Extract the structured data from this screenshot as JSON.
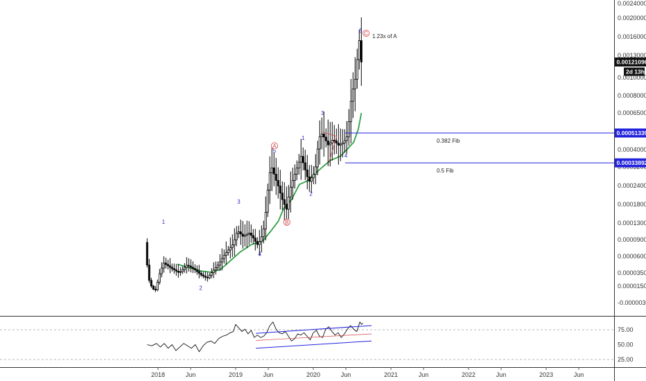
{
  "chart_data": [
    {
      "type": "candlestick",
      "ylim": [
        -3.5e-06,
        0.00024
      ],
      "y_scale": "log",
      "y_ticks": [
        "0.00240000",
        "0.00200000",
        "0.00160000",
        "0.00130000",
        "0.00100000",
        "0.00080000",
        "0.00065000",
        "0.00040000",
        "0.00032000",
        "0.00024000",
        "0.00018000",
        "0.00013000",
        "0.00009000",
        "0.00006000",
        "0.00003500",
        "0.00001500",
        "-0.00000300"
      ],
      "x_ticks": [
        "2018",
        "Jun",
        "2019",
        "Jun",
        "2020",
        "Jun",
        "2021",
        "Jun",
        "2022",
        "Jun",
        "2023",
        "Jun"
      ],
      "price_tags": [
        {
          "label": "0.00121096",
          "sub": "2d 13h",
          "style": "dark"
        },
        {
          "label": "0.00051339",
          "style": "blue"
        },
        {
          "label": "0.00033892",
          "style": "blue"
        }
      ],
      "levels": [
        {
          "label": "0.382 Fib",
          "value": 0.00051339
        },
        {
          "label": "0.5 Fib",
          "value": 0.00033892
        }
      ],
      "annotations": {
        "waves": [
          "1",
          "2",
          "3",
          "4",
          "5",
          "A",
          "B",
          "1",
          "2",
          "3",
          "4",
          "5",
          "C"
        ],
        "note": "1.23x of A"
      },
      "colors": {
        "candle": "#000000",
        "ma": "#2ea043",
        "fib": "#2222dd",
        "abc": "#d04040",
        "wave": "#2828c8"
      },
      "price_path": [
        [
          2017.86,
          8.5e-05
        ],
        [
          2017.9,
          2.8e-05
        ],
        [
          2017.95,
          1.2e-05
        ],
        [
          2018.0,
          1.1e-05
        ],
        [
          2018.05,
          3.5e-05
        ],
        [
          2018.1,
          5e-05
        ],
        [
          2018.2,
          4.2e-05
        ],
        [
          2018.3,
          3.5e-05
        ],
        [
          2018.4,
          4.7e-05
        ],
        [
          2018.5,
          4e-05
        ],
        [
          2018.58,
          3.2e-05
        ],
        [
          2018.66,
          2.7e-05
        ],
        [
          2018.72,
          3.6e-05
        ],
        [
          2018.8,
          4.7e-05
        ],
        [
          2018.9,
          6.6e-05
        ],
        [
          2019.0,
          8.3e-05
        ],
        [
          2019.05,
          0.000112
        ],
        [
          2019.12,
          9.8e-05
        ],
        [
          2019.2,
          0.000106
        ],
        [
          2019.27,
          9e-05
        ],
        [
          2019.3,
          8e-05
        ],
        [
          2019.35,
          9e-05
        ],
        [
          2019.4,
          0.000125
        ],
        [
          2019.45,
          0.00025
        ],
        [
          2019.48,
          0.00033
        ],
        [
          2019.55,
          0.00026
        ],
        [
          2019.62,
          0.0002
        ],
        [
          2019.68,
          0.000165
        ],
        [
          2019.72,
          0.00022
        ],
        [
          2019.8,
          0.0003
        ],
        [
          2019.87,
          0.00037
        ],
        [
          2019.92,
          0.00031
        ],
        [
          2019.97,
          0.000255
        ],
        [
          2020.05,
          0.0003
        ],
        [
          2020.12,
          0.00052
        ],
        [
          2020.17,
          0.00048
        ],
        [
          2020.22,
          0.00043
        ],
        [
          2020.28,
          0.00047
        ],
        [
          2020.35,
          0.00043
        ],
        [
          2020.42,
          0.00045
        ],
        [
          2020.47,
          0.0005
        ],
        [
          2020.52,
          0.0008
        ],
        [
          2020.57,
          0.001
        ],
        [
          2020.62,
          0.00155
        ],
        [
          2020.64,
          0.00121
        ]
      ],
      "ma_path": [
        [
          2018.25,
          4.8e-05
        ],
        [
          2018.4,
          4.3e-05
        ],
        [
          2018.55,
          3.8e-05
        ],
        [
          2018.68,
          3.6e-05
        ],
        [
          2018.8,
          4e-05
        ],
        [
          2018.92,
          5.2e-05
        ],
        [
          2019.05,
          6.7e-05
        ],
        [
          2019.2,
          8.1e-05
        ],
        [
          2019.35,
          8.8e-05
        ],
        [
          2019.45,
          0.00011
        ],
        [
          2019.55,
          0.000135
        ],
        [
          2019.62,
          0.00017
        ],
        [
          2019.72,
          0.000195
        ],
        [
          2019.82,
          0.000245
        ],
        [
          2019.92,
          0.00026
        ],
        [
          2020.02,
          0.00029
        ],
        [
          2020.12,
          0.00032
        ],
        [
          2020.22,
          0.00035
        ],
        [
          2020.35,
          0.00037
        ],
        [
          2020.45,
          0.00041
        ],
        [
          2020.52,
          0.00045
        ],
        [
          2020.58,
          0.00054
        ],
        [
          2020.62,
          0.00065
        ]
      ]
    },
    {
      "type": "line",
      "ylim": [
        25,
        100
      ],
      "y_ticks": [
        "75.00",
        "50.00",
        "25.00"
      ],
      "series": [
        {
          "x": [
            2017.86,
            2017.92,
            2017.98,
            2018.03,
            2018.08,
            2018.13,
            2018.18,
            2018.23,
            2018.28,
            2018.33,
            2018.38,
            2018.43,
            2018.48,
            2018.53,
            2018.58,
            2018.63,
            2018.68,
            2018.73,
            2018.78,
            2018.83,
            2018.88,
            2018.93,
            2018.97,
            2019.0,
            2019.04,
            2019.08,
            2019.12,
            2019.16,
            2019.2,
            2019.24,
            2019.28,
            2019.32,
            2019.36,
            2019.4,
            2019.44,
            2019.48,
            2019.52,
            2019.56,
            2019.6,
            2019.64,
            2019.68,
            2019.72,
            2019.76,
            2019.8,
            2019.84,
            2019.88,
            2019.92,
            2019.96,
            2020.0,
            2020.04,
            2020.08,
            2020.12,
            2020.16,
            2020.2,
            2020.24,
            2020.28,
            2020.32,
            2020.36,
            2020.4,
            2020.44,
            2020.48,
            2020.52,
            2020.56,
            2020.6,
            2020.62,
            2020.64
          ],
          "values": [
            50,
            48,
            52,
            46,
            52,
            44,
            50,
            40,
            46,
            52,
            48,
            44,
            50,
            38,
            48,
            54,
            56,
            52,
            60,
            64,
            66,
            70,
            72,
            84,
            78,
            72,
            76,
            68,
            74,
            62,
            66,
            62,
            64,
            70,
            82,
            88,
            76,
            70,
            68,
            72,
            64,
            56,
            60,
            68,
            66,
            70,
            64,
            58,
            70,
            74,
            64,
            62,
            76,
            80,
            72,
            66,
            70,
            62,
            68,
            76,
            82,
            76,
            72,
            88,
            84,
            86
          ]
        }
      ],
      "channel": [
        [
          [
            2019.26,
            69
          ],
          [
            2020.75,
            82
          ]
        ],
        [
          [
            2019.26,
            57
          ],
          [
            2020.75,
            68
          ]
        ],
        [
          [
            2019.26,
            44
          ],
          [
            2020.75,
            56
          ]
        ]
      ]
    }
  ]
}
